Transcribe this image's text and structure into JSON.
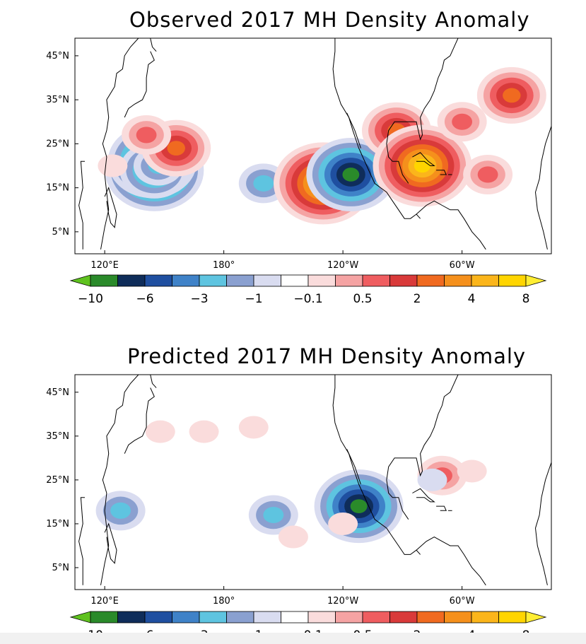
{
  "colorbar": {
    "colors": [
      "#5fc21f",
      "#2a8a2a",
      "#0f2d5a",
      "#1f4fa0",
      "#3f82c8",
      "#5ec4e0",
      "#8aa0d0",
      "#d9dcf0",
      "#ffffff",
      "#fadcdc",
      "#f5a3a3",
      "#ef5d60",
      "#d93a3a",
      "#f06a20",
      "#f5901c",
      "#fbb51b",
      "#ffd500",
      "#ffee33"
    ],
    "tick_labels": [
      "−10",
      "−6",
      "−3",
      "−1",
      "−0.1",
      "0.5",
      "2",
      "4",
      "8"
    ]
  },
  "chart_data": [
    {
      "type": "heatmap",
      "title": "Observed 2017 MH Density Anomaly",
      "xticks": [
        "120°E",
        "180°",
        "120°W",
        "60°W"
      ],
      "yticks": [
        "45°N",
        "35°N",
        "25°N",
        "15°N",
        "5°N"
      ],
      "color_levels": [
        -10,
        -6,
        -3,
        -1,
        -0.1,
        0.5,
        2,
        4,
        8
      ],
      "anomalies": [
        {
          "lon": 145,
          "lat": 19,
          "value": -10
        },
        {
          "lon": 144,
          "lat": 21,
          "value": -6
        },
        {
          "lon": 145,
          "lat": 19,
          "value": -3
        },
        {
          "lon": 147,
          "lat": 20,
          "value": -1
        },
        {
          "lon": 156,
          "lat": 24,
          "value": 4
        },
        {
          "lon": 141,
          "lat": 27,
          "value": 2
        },
        {
          "lon": 124,
          "lat": 20,
          "value": 0.5
        },
        {
          "lon": 200,
          "lat": 16,
          "value": -1
        },
        {
          "lon": 230,
          "lat": 16,
          "value": 8
        },
        {
          "lon": 244,
          "lat": 18,
          "value": -6
        },
        {
          "lon": 267,
          "lat": 28,
          "value": 4
        },
        {
          "lon": 280,
          "lat": 20,
          "value": 8
        },
        {
          "lon": 300,
          "lat": 30,
          "value": 2
        },
        {
          "lon": 313,
          "lat": 18,
          "value": 2
        },
        {
          "lon": 325,
          "lat": 36,
          "value": 4
        }
      ]
    },
    {
      "type": "heatmap",
      "title": "Predicted 2017 MH Density Anomaly",
      "xticks": [
        "120°E",
        "180°",
        "120°W",
        "60°W"
      ],
      "yticks": [
        "45°N",
        "35°N",
        "25°N",
        "15°N",
        "5°N"
      ],
      "color_levels": [
        -10,
        -6,
        -3,
        -1,
        -0.1,
        0.5,
        2,
        4,
        8
      ],
      "anomalies": [
        {
          "lon": 128,
          "lat": 18,
          "value": -1
        },
        {
          "lon": 148,
          "lat": 36,
          "value": 0.5
        },
        {
          "lon": 170,
          "lat": 36,
          "value": 0.5
        },
        {
          "lon": 195,
          "lat": 37,
          "value": 0.5
        },
        {
          "lon": 205,
          "lat": 17,
          "value": -1
        },
        {
          "lon": 215,
          "lat": 12,
          "value": 0.5
        },
        {
          "lon": 248,
          "lat": 19,
          "value": -6
        },
        {
          "lon": 240,
          "lat": 15,
          "value": 0.5
        },
        {
          "lon": 290,
          "lat": 26,
          "value": 2
        },
        {
          "lon": 305,
          "lat": 27,
          "value": 0.5
        },
        {
          "lon": 285,
          "lat": 25,
          "value": -0.1
        }
      ]
    }
  ]
}
